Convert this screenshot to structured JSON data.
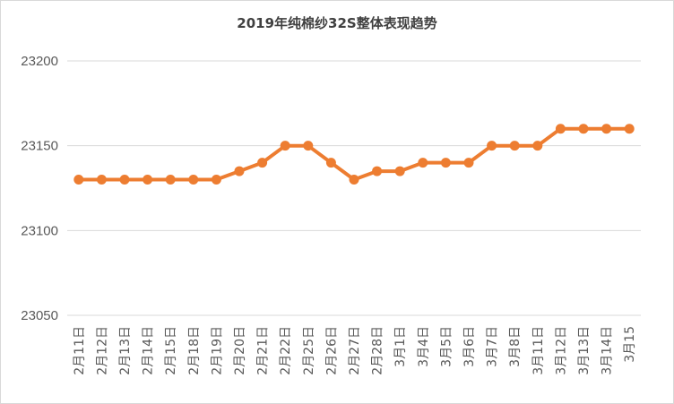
{
  "chart_data": {
    "type": "line",
    "title": "2019年纯棉纱32S整体表现趋势",
    "xlabel": "",
    "ylabel": "",
    "ylim": [
      23050,
      23200
    ],
    "yticks": [
      23050,
      23100,
      23150,
      23200
    ],
    "grid": true,
    "legend": "none",
    "categories": [
      "2月11日",
      "2月12日",
      "2月13日",
      "2月14日",
      "2月15日",
      "2月18日",
      "2月19日",
      "2月20日",
      "2月21日",
      "2月22日",
      "2月25日",
      "2月26日",
      "2月27日",
      "2月28日",
      "3月1日",
      "3月4日",
      "3月5日",
      "3月6日",
      "3月7日",
      "3月8日",
      "3月11日",
      "3月12日",
      "3月13日",
      "3月14日",
      "3月15"
    ],
    "series": [
      {
        "values": [
          23130,
          23130,
          23130,
          23130,
          23130,
          23130,
          23130,
          23135,
          23140,
          23150,
          23150,
          23140,
          23130,
          23135,
          23135,
          23140,
          23140,
          23140,
          23150,
          23150,
          23150,
          23160,
          23160,
          23160,
          23160
        ]
      }
    ],
    "colors": {
      "line": "#ed7d31",
      "grid": "#d9d9d9",
      "text": "#595959"
    }
  }
}
